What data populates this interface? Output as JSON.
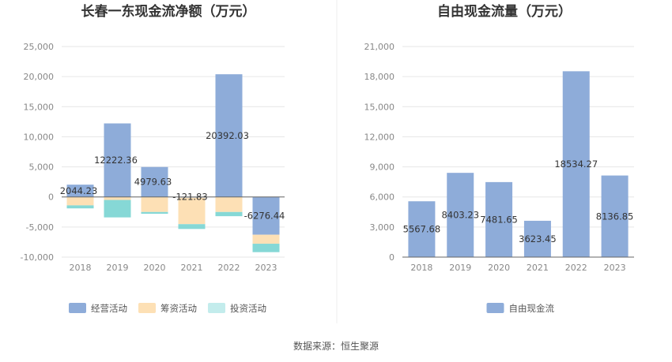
{
  "source_note": "数据来源：恒生聚源",
  "colors": {
    "operating": "#8eacd9",
    "financing": "#fde0b5",
    "investing": "#86d8d6",
    "fcf": "#8eacd9",
    "grid": "#e6e6e6",
    "zero_line": "#666666"
  },
  "chart_data": [
    {
      "type": "bar",
      "stacked": true,
      "title": "长春一东现金流净额（万元）",
      "categories": [
        "2018",
        "2019",
        "2020",
        "2021",
        "2022",
        "2023"
      ],
      "series": [
        {
          "name": "经营活动",
          "color_key": "operating",
          "values": [
            2044.23,
            12222.36,
            4979.63,
            -121.83,
            20392.03,
            -6276.44
          ]
        },
        {
          "name": "筹资活动",
          "color_key": "financing",
          "values": [
            -1400,
            -500,
            -2500,
            -4400,
            -2500,
            -1500
          ]
        },
        {
          "name": "投资活动",
          "color_key": "investing",
          "values": [
            -500,
            -2900,
            -300,
            -800,
            -700,
            -1400
          ]
        }
      ],
      "data_labels": [
        "2044.23",
        "12222.36",
        "4979.63",
        "-121.83",
        "20392.03",
        "-6276.44"
      ],
      "yticks": [
        25000,
        20000,
        15000,
        10000,
        5000,
        0,
        -5000,
        -10000
      ],
      "ytick_labels": [
        "25,000",
        "20,000",
        "15,000",
        "10,000",
        "5,000",
        "0",
        "-5,000",
        "-10,000"
      ],
      "ylim": [
        -10000,
        25000
      ],
      "legend_position": "bottom"
    },
    {
      "type": "bar",
      "title": "自由现金流量（万元）",
      "categories": [
        "2018",
        "2019",
        "2020",
        "2021",
        "2022",
        "2023"
      ],
      "series": [
        {
          "name": "自由现金流",
          "color_key": "fcf",
          "values": [
            5567.68,
            8403.23,
            7481.65,
            3623.45,
            18534.27,
            8136.85
          ]
        }
      ],
      "data_labels": [
        "5567.68",
        "8403.23",
        "7481.65",
        "3623.45",
        "18534.27",
        "8136.85"
      ],
      "yticks": [
        21000,
        18000,
        15000,
        12000,
        9000,
        6000,
        3000,
        0
      ],
      "ytick_labels": [
        "21,000",
        "18,000",
        "15,000",
        "12,000",
        "9,000",
        "6,000",
        "3,000",
        "0"
      ],
      "ylim": [
        0,
        21000
      ],
      "legend_position": "bottom"
    }
  ]
}
